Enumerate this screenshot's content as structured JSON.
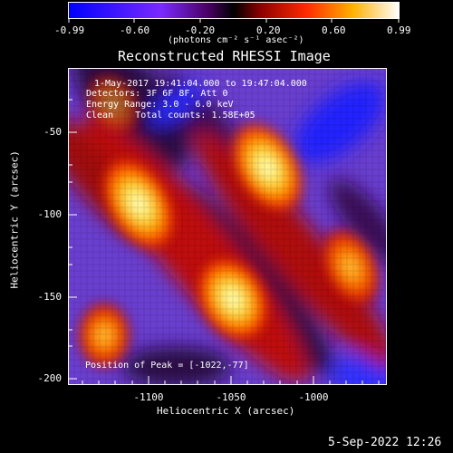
{
  "colorbar": {
    "tick_labels": [
      "-0.99",
      "-0.60",
      "-0.20",
      "0.20",
      "0.60",
      "0.99"
    ],
    "units": "(photons cm⁻² s⁻¹ asec⁻²)"
  },
  "image": {
    "title": "Reconstructed RHESSI Image",
    "overlay_lines": [
      "1-May-2017 19:41:04.000 to 19:47:04.000",
      "Detectors: 3F 6F 8F, Att 0",
      "Energy Range: 3.0 - 6.0 keV",
      "Clean    Total counts: 1.58E+05"
    ],
    "peak_text": "Position of Peak = [-1022,-77]",
    "xlabel": "Heliocentric X (arcsec)",
    "ylabel": "Heliocentric Y (arcsec)",
    "x_ticks": [
      "-1100",
      "-1050",
      "-1000"
    ],
    "y_ticks": [
      "-50",
      "-100",
      "-150",
      "-200"
    ]
  },
  "footer": {
    "timestamp": "5-Sep-2022 12:26"
  }
}
